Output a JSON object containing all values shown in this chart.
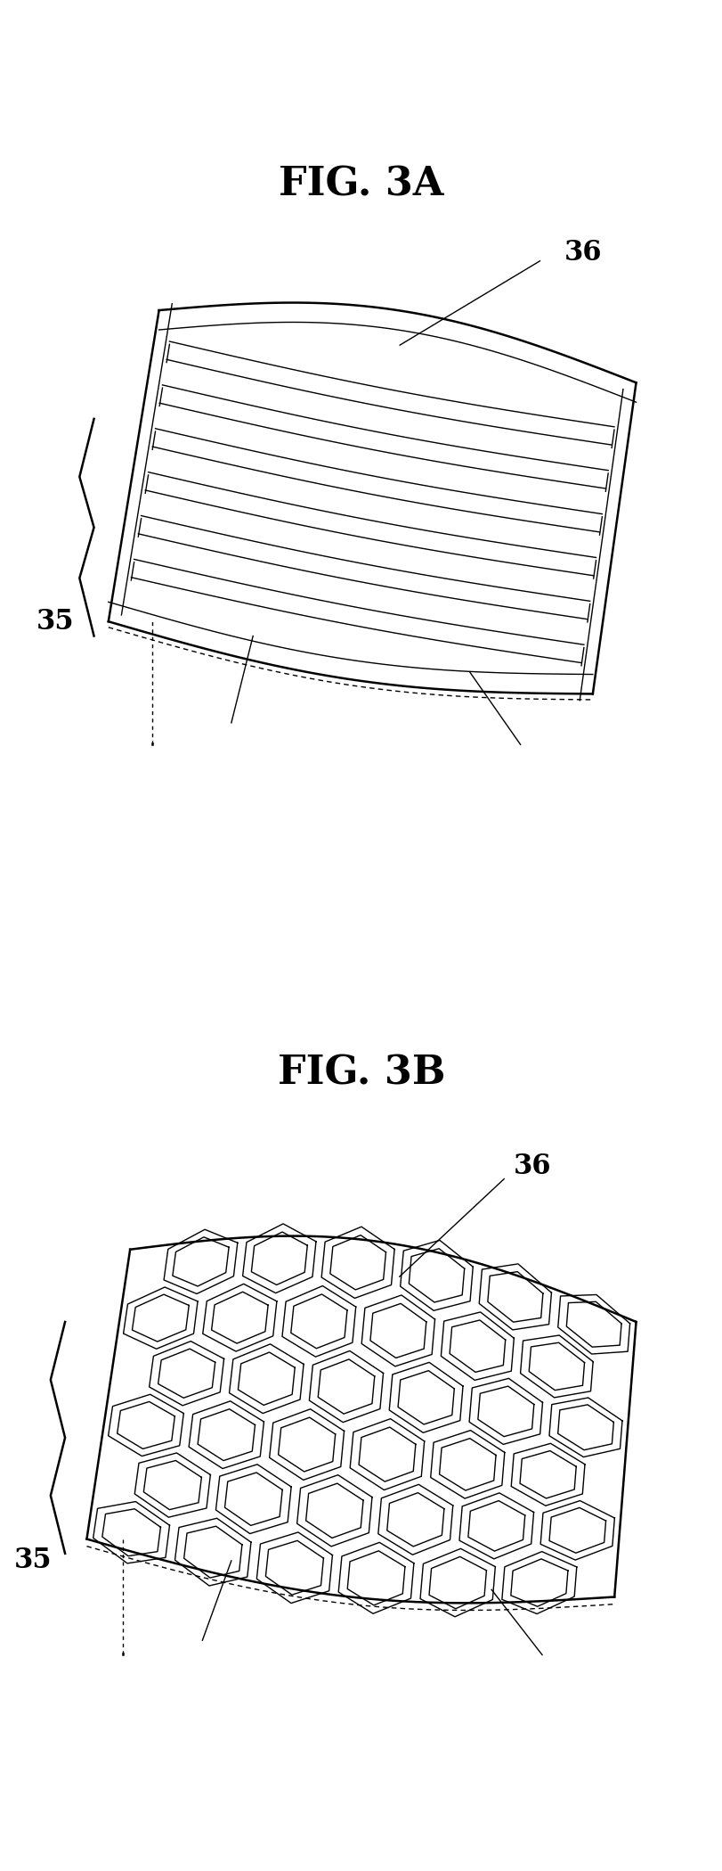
{
  "fig_title_a": "FIG. 3A",
  "fig_title_b": "FIG. 3B",
  "title_fontsize": 32,
  "label_fontsize": 22,
  "bg_color": "#ffffff",
  "line_color": "#000000",
  "label_35": "35",
  "label_36": "36"
}
